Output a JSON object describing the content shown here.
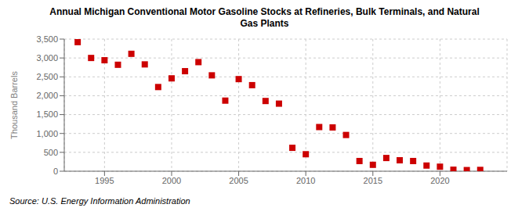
{
  "chart_data": {
    "type": "scatter",
    "title": "Annual Michigan Conventional Motor Gasoline Stocks at Refineries, Bulk Terminals, and Natural\nGas Plants",
    "ylabel": "Thousand Barrels",
    "source": "Source: U.S. Energy Information Administration",
    "x": [
      1993,
      1994,
      1995,
      1996,
      1997,
      1998,
      1999,
      2000,
      2001,
      2002,
      2003,
      2004,
      2005,
      2006,
      2007,
      2008,
      2009,
      2010,
      2011,
      2012,
      2013,
      2014,
      2015,
      2016,
      2017,
      2018,
      2019,
      2020,
      2021,
      2022,
      2023
    ],
    "values": [
      3420,
      3000,
      2940,
      2820,
      3110,
      2830,
      2230,
      2460,
      2650,
      2890,
      2540,
      1870,
      2440,
      2280,
      1860,
      1790,
      620,
      450,
      1170,
      1160,
      960,
      270,
      170,
      350,
      290,
      270,
      150,
      120,
      40,
      30,
      35
    ],
    "color": "#cc0000",
    "marker": "square",
    "xlim": [
      1992,
      2025
    ],
    "ylim": [
      0,
      3500
    ],
    "xticks": [
      1995,
      2000,
      2005,
      2010,
      2015,
      2020
    ],
    "yticks": [
      0,
      500,
      {
        "value": 1000,
        "label": "1,000"
      },
      {
        "value": 1500,
        "label": "1,500"
      },
      {
        "value": 2000,
        "label": "2,000"
      },
      {
        "value": 2500,
        "label": "2,500"
      },
      {
        "value": 3000,
        "label": "3,000"
      },
      {
        "value": 3500,
        "label": "3,500"
      }
    ],
    "grid": true
  }
}
